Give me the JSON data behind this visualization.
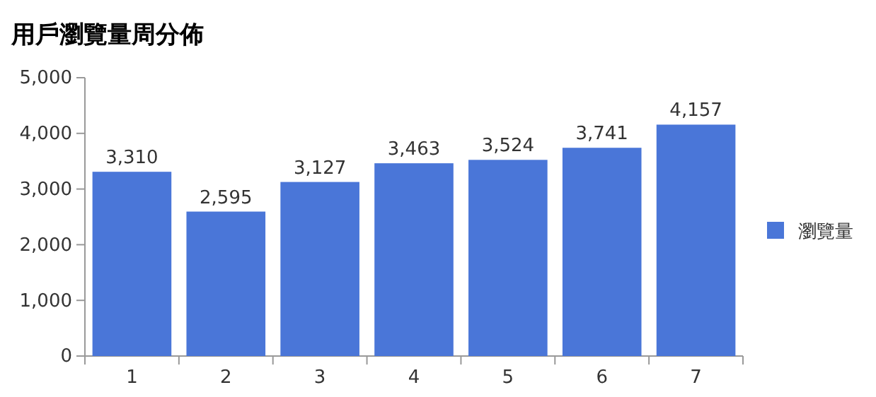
{
  "chart_data": {
    "type": "bar",
    "title": "用戶瀏覽量周分佈",
    "categories": [
      "1",
      "2",
      "3",
      "4",
      "5",
      "6",
      "7"
    ],
    "series": [
      {
        "name": "瀏覽量",
        "color": "#4a76d8",
        "values": [
          3310,
          2595,
          3127,
          3463,
          3524,
          3741,
          4157
        ],
        "value_labels": [
          "3,310",
          "2,595",
          "3,127",
          "3,463",
          "3,524",
          "3,741",
          "4,157"
        ]
      }
    ],
    "ylim": [
      0,
      5000
    ],
    "yticks": [
      {
        "value": 0,
        "label": "0"
      },
      {
        "value": 1000,
        "label": "1,000"
      },
      {
        "value": 2000,
        "label": "2,000"
      },
      {
        "value": 3000,
        "label": "3,000"
      },
      {
        "value": 4000,
        "label": "4,000"
      },
      {
        "value": 5000,
        "label": "5,000"
      }
    ],
    "legend": "right"
  }
}
